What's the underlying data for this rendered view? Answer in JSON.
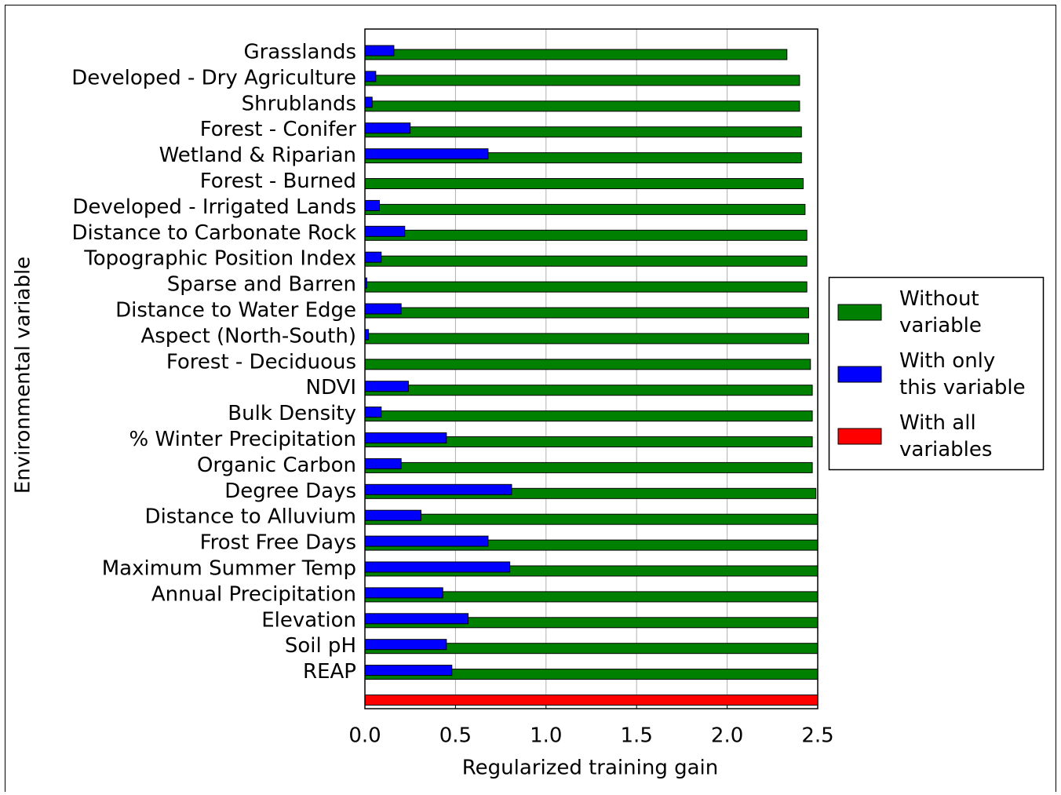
{
  "chart_data": {
    "type": "hbar",
    "x_label": "Regularized training gain",
    "y_label": "Environmental variable",
    "categories": [
      "Grasslands",
      "Developed - Dry Agriculture",
      "Shrublands",
      "Forest - Conifer",
      "Wetland & Riparian",
      "Forest - Burned",
      "Developed - Irrigated Lands",
      "Distance to Carbonate Rock",
      "Topographic Position Index",
      "Sparse and Barren",
      "Distance to Water Edge",
      "Aspect (North-South)",
      "Forest - Deciduous",
      "NDVI",
      "Bulk Density",
      "% Winter Precipitation",
      "Organic Carbon",
      "Degree Days",
      "Distance to Alluvium",
      "Frost Free Days",
      "Maximum Summer Temp",
      "Annual Precipitation",
      "Elevation",
      "Soil pH",
      "REAP",
      null
    ],
    "series": [
      {
        "name": "Without variable",
        "color": "#008000",
        "values": [
          2.33,
          2.4,
          2.4,
          2.41,
          2.41,
          2.42,
          2.43,
          2.44,
          2.44,
          2.44,
          2.45,
          2.45,
          2.46,
          2.47,
          2.47,
          2.47,
          2.47,
          2.49,
          2.5,
          2.5,
          2.5,
          2.5,
          2.5,
          2.5,
          2.5,
          null
        ]
      },
      {
        "name": "With only this variable",
        "color": "#0000ff",
        "values": [
          0.16,
          0.06,
          0.04,
          0.25,
          0.68,
          0,
          0.08,
          0.22,
          0.09,
          0.01,
          0.2,
          0.02,
          0,
          0.24,
          0.09,
          0.45,
          0.2,
          0.81,
          0.31,
          0.68,
          0.8,
          0.43,
          0.57,
          0.45,
          0.48,
          null
        ]
      },
      {
        "name": "With all variables",
        "color": "#ff0000",
        "values": [
          null,
          null,
          null,
          null,
          null,
          null,
          null,
          null,
          null,
          null,
          null,
          null,
          null,
          null,
          null,
          null,
          null,
          null,
          null,
          null,
          null,
          null,
          null,
          null,
          null,
          2.5
        ]
      }
    ],
    "xlim": [
      0,
      2.5
    ],
    "xticks": [
      {
        "value": 0,
        "label": "0.0"
      },
      {
        "value": 0.5,
        "label": "0.5"
      },
      {
        "value": 1,
        "label": "1.0"
      },
      {
        "value": 1.5,
        "label": "1.5"
      },
      {
        "value": 2,
        "label": "2.0"
      },
      {
        "value": 2.5,
        "label": "2.5"
      }
    ],
    "grid": true,
    "legend": "right"
  }
}
